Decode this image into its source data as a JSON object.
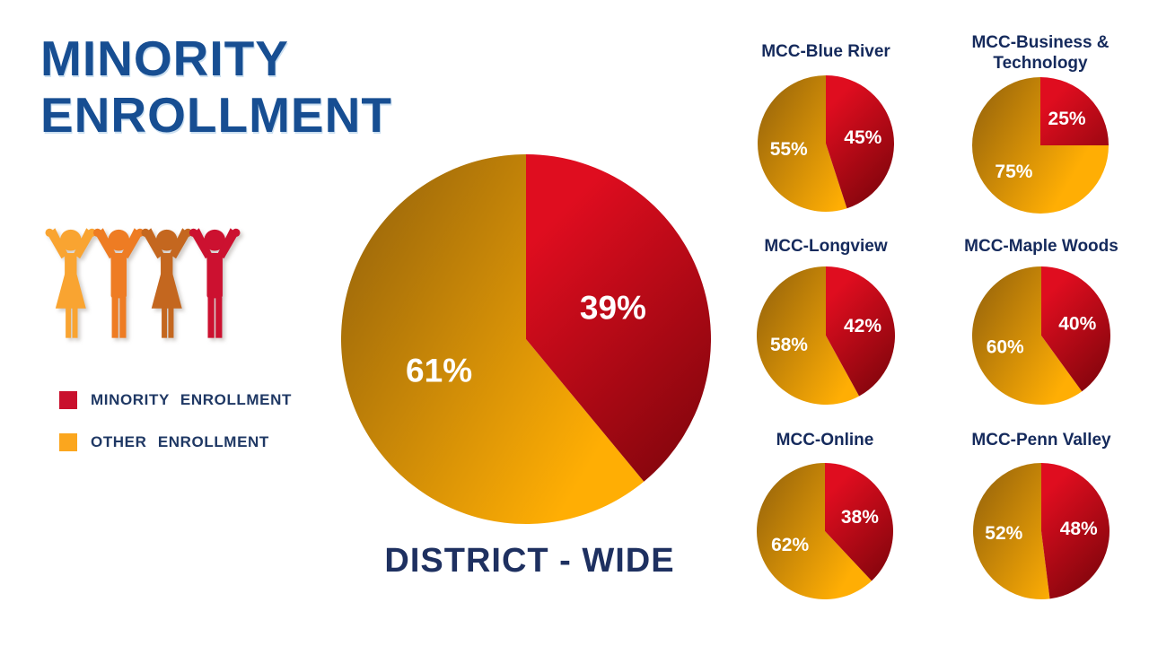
{
  "title": {
    "line1": "MINORITY",
    "line2": "ENROLLMENT",
    "color": "#174E92"
  },
  "legend": {
    "items": [
      {
        "label": "MINORITY ENROLLMENT",
        "color": "#C9102D"
      },
      {
        "label": "OTHER ENROLLMENT",
        "color": "#FBA61E"
      }
    ],
    "text_color": "#1F3864"
  },
  "people_graphic": {
    "figure_colors": [
      "#F9A431",
      "#EE7C23",
      "#C4671F",
      "#CC1130"
    ]
  },
  "colors": {
    "minority_bright": "#DF0D1F",
    "minority_dark": "#8B060E",
    "other_bright": "#FFAE04",
    "other_dark": "#A26C0A",
    "slice_label_text": "#FFFFFF",
    "pie_title_navy": "#152A5C",
    "caption_navy": "#1E3060"
  },
  "chart_data": [
    {
      "type": "pie",
      "title": "DISTRICT - WIDE",
      "legend_position": "left",
      "series": [
        {
          "name": "MINORITY ENROLLMENT",
          "value": 39
        },
        {
          "name": "OTHER ENROLLMENT",
          "value": 61
        }
      ]
    },
    {
      "type": "pie",
      "title": "MCC-Blue River",
      "series": [
        {
          "name": "MINORITY ENROLLMENT",
          "value": 45
        },
        {
          "name": "OTHER ENROLLMENT",
          "value": 55
        }
      ]
    },
    {
      "type": "pie",
      "title": "MCC-Business & Technology",
      "series": [
        {
          "name": "MINORITY ENROLLMENT",
          "value": 25
        },
        {
          "name": "OTHER ENROLLMENT",
          "value": 75
        }
      ]
    },
    {
      "type": "pie",
      "title": "MCC-Longview",
      "series": [
        {
          "name": "MINORITY ENROLLMENT",
          "value": 42
        },
        {
          "name": "OTHER ENROLLMENT",
          "value": 58
        }
      ]
    },
    {
      "type": "pie",
      "title": "MCC-Maple Woods",
      "series": [
        {
          "name": "MINORITY ENROLLMENT",
          "value": 40
        },
        {
          "name": "OTHER ENROLLMENT",
          "value": 60
        }
      ]
    },
    {
      "type": "pie",
      "title": "MCC-Online",
      "series": [
        {
          "name": "MINORITY ENROLLMENT",
          "value": 38
        },
        {
          "name": "OTHER ENROLLMENT",
          "value": 62
        }
      ]
    },
    {
      "type": "pie",
      "title": "MCC-Penn Valley",
      "series": [
        {
          "name": "MINORITY ENROLLMENT",
          "value": 48
        },
        {
          "name": "OTHER ENROLLMENT",
          "value": 52
        }
      ]
    }
  ]
}
